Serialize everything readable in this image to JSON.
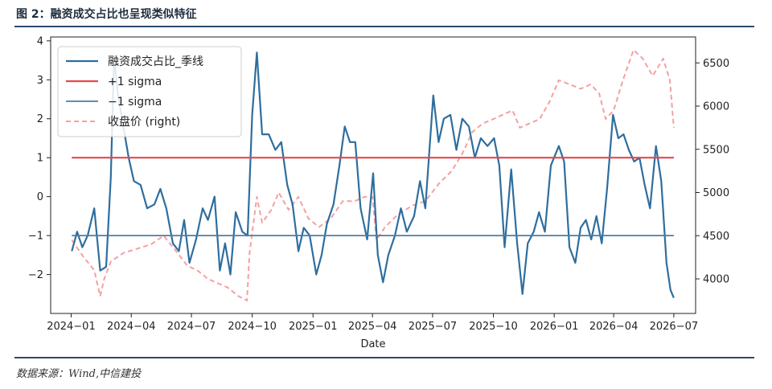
{
  "figure": {
    "title": "图 2：融资成交占比也呈现类似特征",
    "source": "数据来源：Wind,中信建投"
  },
  "colors": {
    "ratio": "#2e6e9e",
    "plus_sigma": "#e8474b",
    "minus_sigma": "#4a7fa6",
    "close": "#f4a0a2",
    "rule": "#2b4a6a"
  },
  "chart_data": {
    "type": "line",
    "xlabel": "Date",
    "x_ticks": [
      "2024-01",
      "2024-04",
      "2024-07",
      "2024-10",
      "2025-01",
      "2025-04",
      "2025-07",
      "2025-10",
      "2026-01",
      "2026-04",
      "2026-07"
    ],
    "y_ticks_left": [
      -2,
      -1,
      0,
      1,
      2,
      3,
      4
    ],
    "y_ticks_right": [
      4000,
      4500,
      5000,
      5500,
      6000,
      6500
    ],
    "ylim_left": [
      -3.0,
      4.1
    ],
    "ylim_right": [
      3600,
      6800
    ],
    "legend_position": "upper-left",
    "grid": false,
    "series": [
      {
        "name": "融资成交占比_季线",
        "axis": "left",
        "style": "solid",
        "points": [
          [
            "2024-01-02",
            -1.4
          ],
          [
            "2024-01-10",
            -0.9
          ],
          [
            "2024-01-18",
            -1.3
          ],
          [
            "2024-01-26",
            -1.0
          ],
          [
            "2024-02-05",
            -0.3
          ],
          [
            "2024-02-14",
            -1.9
          ],
          [
            "2024-02-23",
            -1.8
          ],
          [
            "2024-03-01",
            0.5
          ],
          [
            "2024-03-06",
            3.6
          ],
          [
            "2024-03-12",
            2.6
          ],
          [
            "2024-03-20",
            1.8
          ],
          [
            "2024-03-28",
            1.0
          ],
          [
            "2024-04-05",
            0.4
          ],
          [
            "2024-04-15",
            0.3
          ],
          [
            "2024-04-25",
            -0.3
          ],
          [
            "2024-05-06",
            -0.2
          ],
          [
            "2024-05-15",
            0.2
          ],
          [
            "2024-05-24",
            -0.3
          ],
          [
            "2024-06-03",
            -1.2
          ],
          [
            "2024-06-12",
            -1.4
          ],
          [
            "2024-06-20",
            -0.6
          ],
          [
            "2024-06-28",
            -1.7
          ],
          [
            "2024-07-08",
            -1.1
          ],
          [
            "2024-07-18",
            -0.3
          ],
          [
            "2024-07-26",
            -0.6
          ],
          [
            "2024-08-05",
            0.0
          ],
          [
            "2024-08-13",
            -1.9
          ],
          [
            "2024-08-21",
            -1.2
          ],
          [
            "2024-08-29",
            -2.0
          ],
          [
            "2024-09-06",
            -0.4
          ],
          [
            "2024-09-16",
            -0.9
          ],
          [
            "2024-09-24",
            -1.0
          ],
          [
            "2024-10-01",
            2.1
          ],
          [
            "2024-10-08",
            3.7
          ],
          [
            "2024-10-16",
            1.6
          ],
          [
            "2024-10-26",
            1.6
          ],
          [
            "2024-11-05",
            1.2
          ],
          [
            "2024-11-14",
            1.4
          ],
          [
            "2024-11-23",
            0.3
          ],
          [
            "2024-12-01",
            -0.2
          ],
          [
            "2024-12-10",
            -1.4
          ],
          [
            "2024-12-18",
            -0.8
          ],
          [
            "2024-12-27",
            -1.0
          ],
          [
            "2025-01-06",
            -2.0
          ],
          [
            "2025-01-14",
            -1.5
          ],
          [
            "2025-01-22",
            -0.7
          ],
          [
            "2025-02-01",
            -0.2
          ],
          [
            "2025-02-10",
            0.8
          ],
          [
            "2025-02-18",
            1.8
          ],
          [
            "2025-02-26",
            1.4
          ],
          [
            "2025-03-06",
            1.4
          ],
          [
            "2025-03-14",
            -0.3
          ],
          [
            "2025-03-24",
            -1.1
          ],
          [
            "2025-04-02",
            0.6
          ],
          [
            "2025-04-09",
            -1.5
          ],
          [
            "2025-04-17",
            -2.2
          ],
          [
            "2025-04-25",
            -1.5
          ],
          [
            "2025-05-05",
            -1.0
          ],
          [
            "2025-05-14",
            -0.3
          ],
          [
            "2025-05-23",
            -0.9
          ],
          [
            "2025-06-03",
            -0.5
          ],
          [
            "2025-06-12",
            0.4
          ],
          [
            "2025-06-20",
            -0.3
          ],
          [
            "2025-07-02",
            2.6
          ],
          [
            "2025-07-10",
            1.4
          ],
          [
            "2025-07-18",
            2.0
          ],
          [
            "2025-07-28",
            2.1
          ],
          [
            "2025-08-06",
            1.2
          ],
          [
            "2025-08-15",
            2.0
          ],
          [
            "2025-08-25",
            1.8
          ],
          [
            "2025-09-03",
            1.0
          ],
          [
            "2025-09-12",
            1.5
          ],
          [
            "2025-09-22",
            1.3
          ],
          [
            "2025-10-02",
            1.5
          ],
          [
            "2025-10-10",
            0.8
          ],
          [
            "2025-10-18",
            -1.3
          ],
          [
            "2025-10-28",
            0.7
          ],
          [
            "2025-11-06",
            -1.2
          ],
          [
            "2025-11-14",
            -2.5
          ],
          [
            "2025-11-22",
            -1.2
          ],
          [
            "2025-12-01",
            -0.9
          ],
          [
            "2025-12-09",
            -0.4
          ],
          [
            "2025-12-18",
            -0.9
          ],
          [
            "2025-12-27",
            0.8
          ],
          [
            "2026-01-08",
            1.3
          ],
          [
            "2026-01-16",
            0.9
          ],
          [
            "2026-01-24",
            -1.3
          ],
          [
            "2026-02-02",
            -1.7
          ],
          [
            "2026-02-10",
            -0.8
          ],
          [
            "2026-02-18",
            -0.6
          ],
          [
            "2026-02-26",
            -1.1
          ],
          [
            "2026-03-06",
            -0.5
          ],
          [
            "2026-03-14",
            -1.2
          ],
          [
            "2026-03-22",
            0.2
          ],
          [
            "2026-03-31",
            2.1
          ],
          [
            "2026-04-08",
            1.5
          ],
          [
            "2026-04-16",
            1.6
          ],
          [
            "2026-04-24",
            1.2
          ],
          [
            "2026-05-02",
            0.9
          ],
          [
            "2026-05-10",
            1.0
          ],
          [
            "2026-05-18",
            0.3
          ],
          [
            "2026-05-26",
            -0.3
          ],
          [
            "2026-06-04",
            1.3
          ],
          [
            "2026-06-12",
            0.4
          ],
          [
            "2026-06-20",
            -1.7
          ],
          [
            "2026-06-26",
            -2.4
          ],
          [
            "2026-07-01",
            -2.6
          ]
        ]
      },
      {
        "name": "+1 sigma",
        "axis": "left",
        "style": "solid",
        "points": [
          [
            "2024-01-02",
            1.0
          ],
          [
            "2026-07-01",
            1.0
          ]
        ]
      },
      {
        "name": "−1 sigma",
        "axis": "left",
        "style": "solid",
        "points": [
          [
            "2024-01-02",
            -1.0
          ],
          [
            "2026-07-01",
            -1.0
          ]
        ]
      },
      {
        "name": "收盘价 (right)",
        "axis": "right",
        "style": "dashed",
        "points": [
          [
            "2024-01-02",
            4450
          ],
          [
            "2024-01-20",
            4250
          ],
          [
            "2024-02-05",
            4100
          ],
          [
            "2024-02-14",
            3800
          ],
          [
            "2024-02-20",
            4000
          ],
          [
            "2024-03-01",
            4200
          ],
          [
            "2024-03-20",
            4300
          ],
          [
            "2024-04-10",
            4350
          ],
          [
            "2024-05-01",
            4400
          ],
          [
            "2024-05-20",
            4500
          ],
          [
            "2024-06-10",
            4300
          ],
          [
            "2024-06-25",
            4150
          ],
          [
            "2024-07-10",
            4100
          ],
          [
            "2024-07-26",
            4000
          ],
          [
            "2024-08-10",
            3950
          ],
          [
            "2024-08-25",
            3900
          ],
          [
            "2024-09-10",
            3800
          ],
          [
            "2024-09-23",
            3750
          ],
          [
            "2024-09-27",
            4300
          ],
          [
            "2024-10-08",
            4950
          ],
          [
            "2024-10-16",
            4650
          ],
          [
            "2024-10-30",
            4800
          ],
          [
            "2024-11-10",
            5000
          ],
          [
            "2024-11-25",
            4800
          ],
          [
            "2024-12-10",
            4950
          ],
          [
            "2024-12-25",
            4700
          ],
          [
            "2025-01-10",
            4600
          ],
          [
            "2025-01-28",
            4700
          ],
          [
            "2025-02-15",
            4900
          ],
          [
            "2025-03-05",
            4900
          ],
          [
            "2025-03-20",
            4950
          ],
          [
            "2025-04-01",
            4950
          ],
          [
            "2025-04-07",
            4450
          ],
          [
            "2025-04-20",
            4600
          ],
          [
            "2025-05-10",
            4750
          ],
          [
            "2025-06-01",
            4850
          ],
          [
            "2025-06-20",
            4900
          ],
          [
            "2025-07-10",
            5100
          ],
          [
            "2025-07-30",
            5250
          ],
          [
            "2025-08-15",
            5450
          ],
          [
            "2025-08-30",
            5700
          ],
          [
            "2025-09-15",
            5800
          ],
          [
            "2025-10-01",
            5850
          ],
          [
            "2025-10-15",
            5900
          ],
          [
            "2025-10-30",
            5950
          ],
          [
            "2025-11-10",
            5750
          ],
          [
            "2025-11-25",
            5800
          ],
          [
            "2025-12-10",
            5850
          ],
          [
            "2025-12-25",
            6050
          ],
          [
            "2026-01-08",
            6300
          ],
          [
            "2026-01-25",
            6250
          ],
          [
            "2026-02-10",
            6200
          ],
          [
            "2026-02-25",
            6250
          ],
          [
            "2026-03-10",
            6150
          ],
          [
            "2026-03-20",
            5850
          ],
          [
            "2026-04-01",
            5950
          ],
          [
            "2026-04-15",
            6300
          ],
          [
            "2026-05-01",
            6650
          ],
          [
            "2026-05-15",
            6550
          ],
          [
            "2026-05-30",
            6350
          ],
          [
            "2026-06-15",
            6550
          ],
          [
            "2026-06-25",
            6300
          ],
          [
            "2026-07-01",
            5750
          ]
        ]
      }
    ]
  }
}
